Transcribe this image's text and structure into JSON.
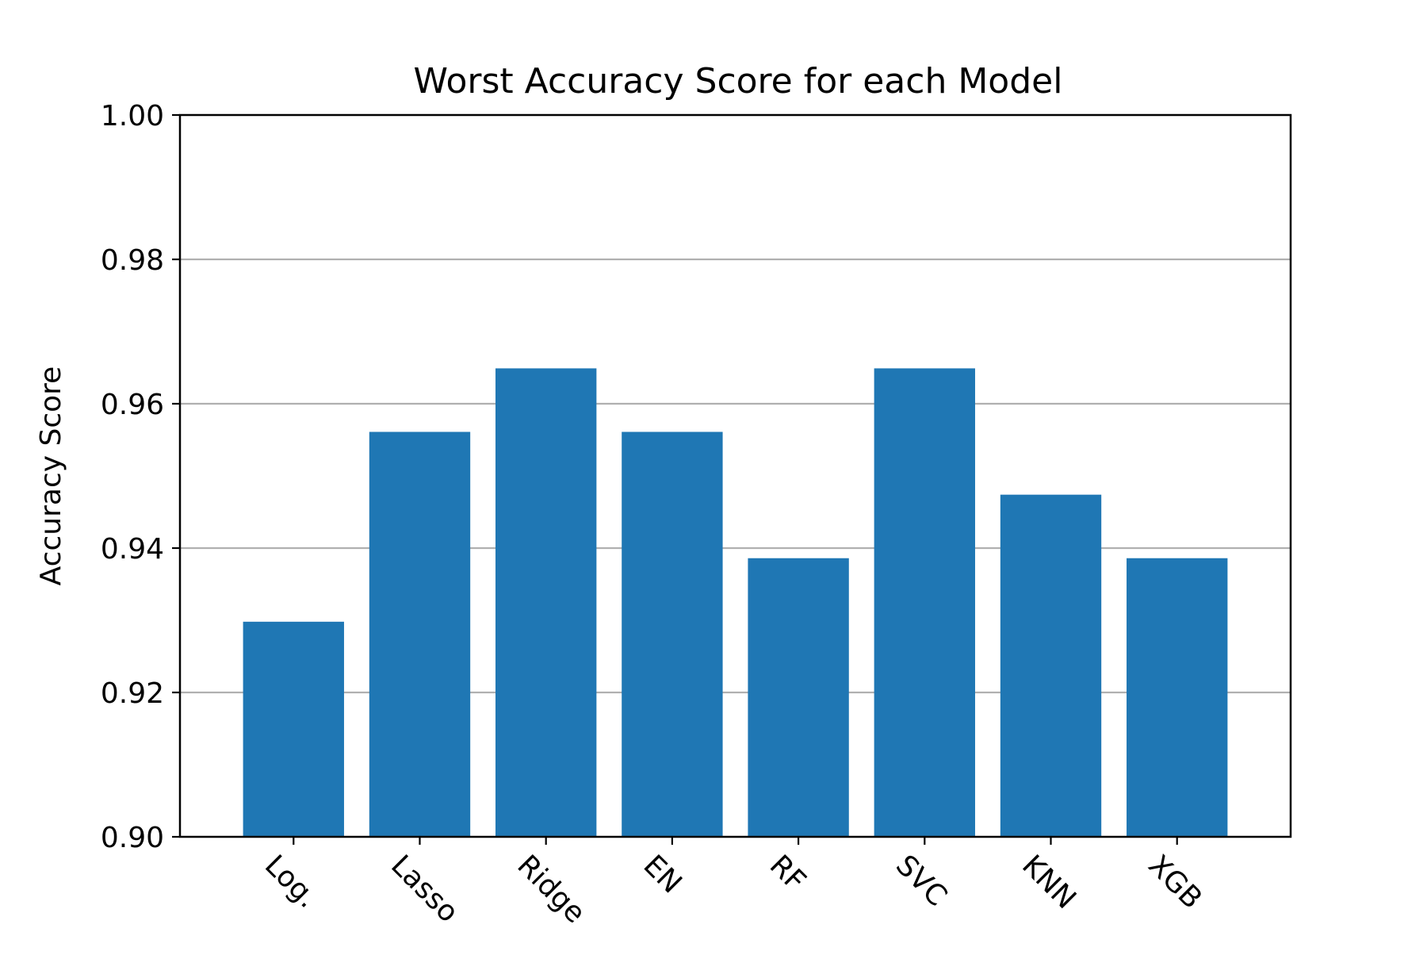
{
  "chart_data": {
    "type": "bar",
    "title": "Worst Accuracy Score for each Model",
    "xlabel": "",
    "ylabel": "Accuracy Score",
    "categories": [
      "Log.",
      "Lasso",
      "Ridge",
      "EN",
      "RF",
      "SVC",
      "KNN",
      "XGB"
    ],
    "values": [
      0.9298,
      0.9561,
      0.9649,
      0.9561,
      0.9386,
      0.9649,
      0.9474,
      0.9386
    ],
    "ylim": [
      0.9,
      1.0
    ],
    "yticks": [
      "0.90",
      "0.92",
      "0.94",
      "0.96",
      "0.98",
      "1.00"
    ],
    "grid": "horizontal",
    "bar_color": "#1f77b4",
    "grid_color": "#b0b0b0"
  }
}
